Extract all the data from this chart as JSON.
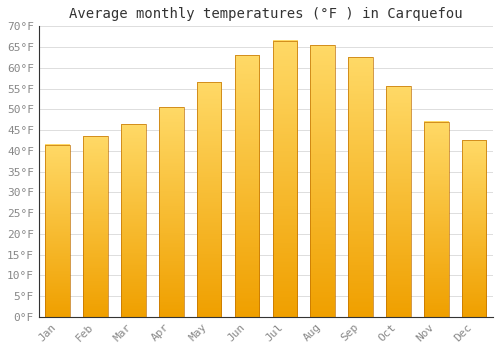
{
  "title": "Average monthly temperatures (°F ) in Carquefou",
  "months": [
    "Jan",
    "Feb",
    "Mar",
    "Apr",
    "May",
    "Jun",
    "Jul",
    "Aug",
    "Sep",
    "Oct",
    "Nov",
    "Dec"
  ],
  "values": [
    41.5,
    43.5,
    46.5,
    50.5,
    56.5,
    63.0,
    66.5,
    65.5,
    62.5,
    55.5,
    47.0,
    42.5
  ],
  "bar_color_top": "#FFD966",
  "bar_color_bottom": "#F0A000",
  "bar_edge_color": "#C07000",
  "ylim": [
    0,
    70
  ],
  "yticks": [
    0,
    5,
    10,
    15,
    20,
    25,
    30,
    35,
    40,
    45,
    50,
    55,
    60,
    65,
    70
  ],
  "background_color": "#ffffff",
  "grid_color": "#dddddd",
  "title_fontsize": 10,
  "tick_fontsize": 8,
  "font_family": "monospace",
  "tick_color": "#888888"
}
